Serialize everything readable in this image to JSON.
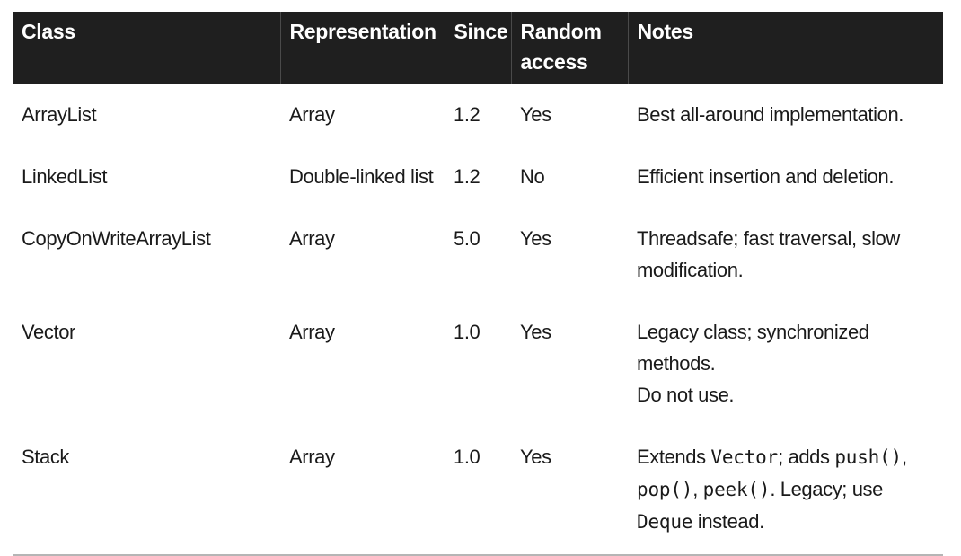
{
  "table": {
    "headers": {
      "class": "Class",
      "representation": "Representation",
      "since": "Since",
      "random_access_1": "Random",
      "random_access_2": "access",
      "notes": "Notes"
    },
    "rows": [
      {
        "class": "ArrayList",
        "representation": "Array",
        "since": "1.2",
        "random_access": "Yes",
        "notes": "Best all-around implementation."
      },
      {
        "class": "LinkedList",
        "representation": "Double-linked list",
        "since": "1.2",
        "random_access": "No",
        "notes": "Efficient insertion and deletion."
      },
      {
        "class": "CopyOnWriteArrayList",
        "representation": "Array",
        "since": "5.0",
        "random_access": "Yes",
        "notes_1": "Threadsafe; fast traversal, slow",
        "notes_2": "modification."
      },
      {
        "class": "Vector",
        "representation": "Array",
        "since": "1.0",
        "random_access": "Yes",
        "notes_1": "Legacy class; synchronized methods.",
        "notes_2": "Do not use."
      },
      {
        "class": "Stack",
        "representation": "Array",
        "since": "1.0",
        "random_access": "Yes",
        "notes_parts": {
          "p1": "Extends ",
          "c1": "Vector",
          "p2": "; adds ",
          "c2": "push()",
          "p3": ",",
          "c3": "pop()",
          "p4": ", ",
          "c4": "peek()",
          "p5": ". Legacy; use",
          "c5": "Deque",
          "p6": " instead."
        }
      }
    ]
  }
}
